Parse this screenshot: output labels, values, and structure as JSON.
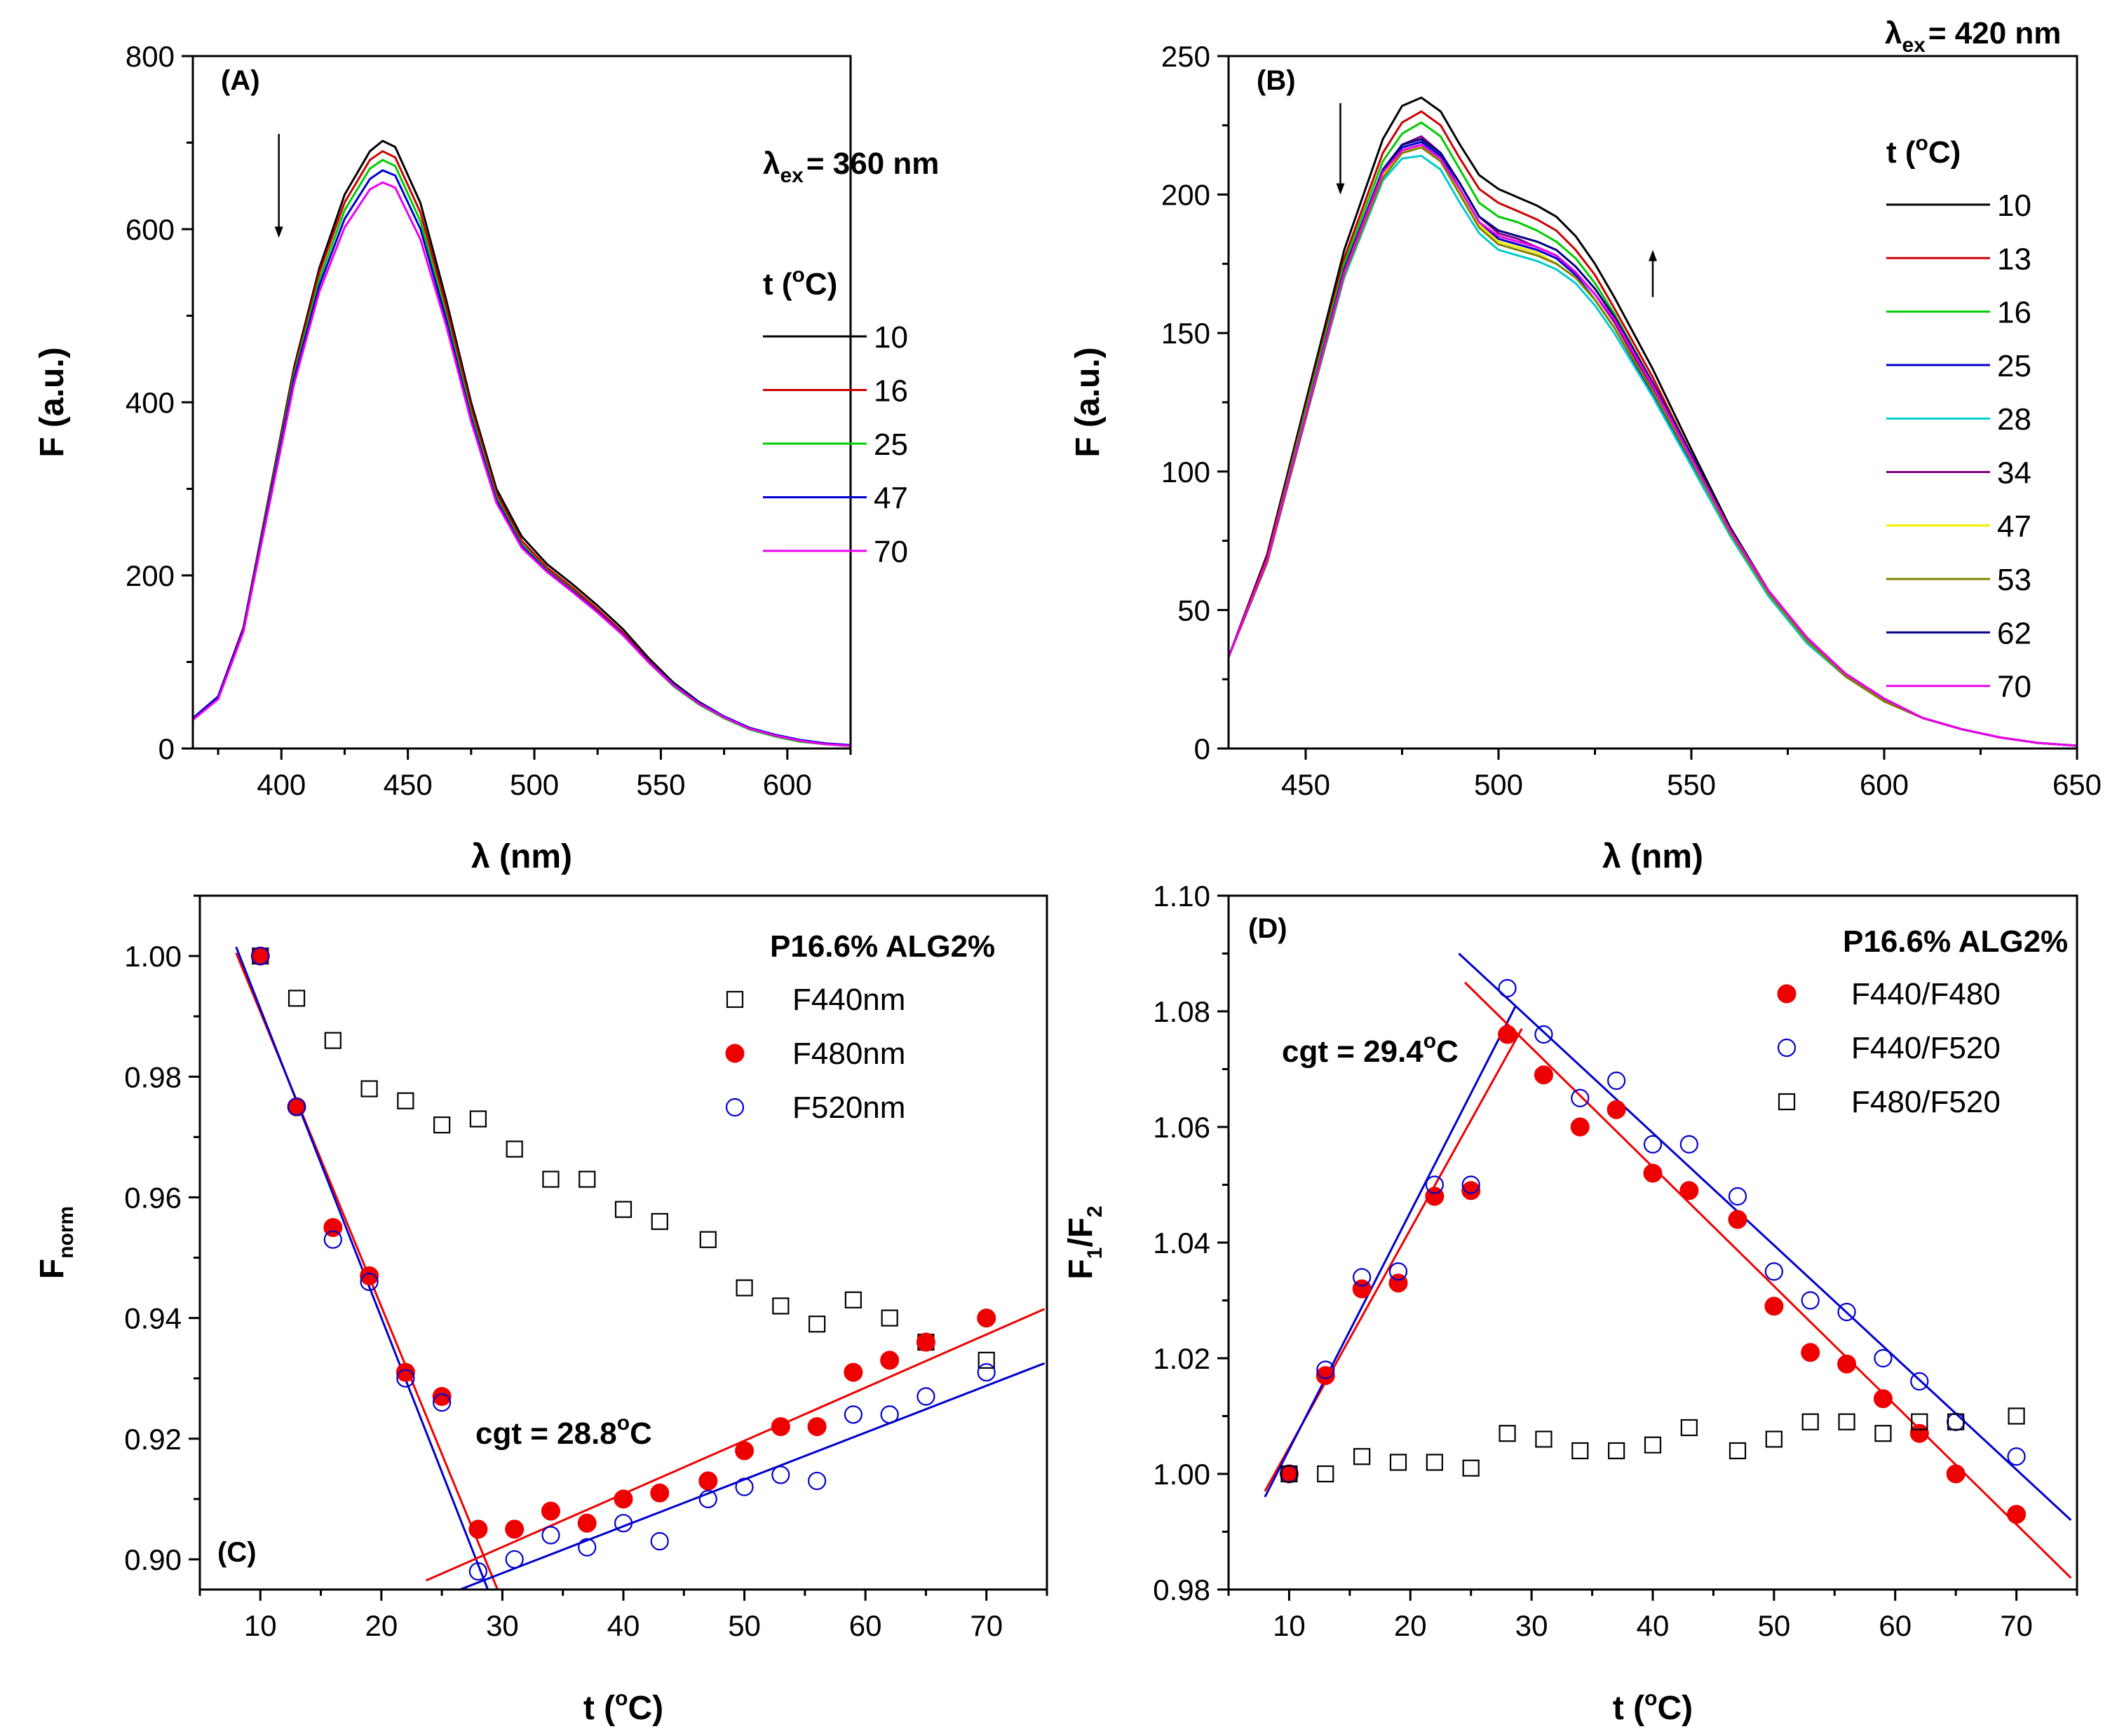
{
  "figure_panels": [
    "A",
    "B",
    "C",
    "D"
  ],
  "chart_data": [
    {
      "id": "A",
      "type": "line",
      "panel_label": "(A)",
      "xlabel": "λ (nm)",
      "ylabel": "F (a.u.)",
      "xlim": [
        365,
        625
      ],
      "ylim": [
        0,
        800
      ],
      "xticks": [
        400,
        450,
        500,
        550,
        600
      ],
      "yticks": [
        0,
        200,
        400,
        600,
        800
      ],
      "annotation": {
        "lambda": "λ",
        "sub": "ex",
        "rest": "= 360 nm"
      },
      "legend_title": {
        "t": "t (",
        "sup": "o",
        "c": "C)"
      },
      "x": [
        365,
        375,
        385,
        395,
        405,
        415,
        425,
        435,
        440,
        445,
        455,
        465,
        475,
        485,
        495,
        505,
        515,
        525,
        535,
        545,
        555,
        565,
        575,
        585,
        595,
        605,
        615,
        625
      ],
      "series": [
        {
          "name": "10",
          "color": "#000000",
          "values": [
            35,
            60,
            140,
            290,
            440,
            555,
            640,
            690,
            702,
            695,
            630,
            520,
            400,
            300,
            245,
            213,
            190,
            165,
            138,
            105,
            76,
            54,
            37,
            24,
            15,
            9,
            5,
            3
          ]
        },
        {
          "name": "16",
          "color": "#cc0000",
          "values": [
            35,
            60,
            140,
            288,
            436,
            550,
            631,
            680,
            690,
            683,
            619,
            512,
            394,
            295,
            240,
            209,
            186,
            161,
            134,
            102,
            74,
            52,
            36,
            23,
            14,
            8,
            5,
            3
          ]
        },
        {
          "name": "25",
          "color": "#00cc00",
          "values": [
            34,
            59,
            138,
            285,
            431,
            542,
            622,
            670,
            680,
            673,
            609,
            503,
            387,
            290,
            236,
            206,
            183,
            158,
            131,
            100,
            72,
            51,
            35,
            22,
            14,
            8,
            5,
            3
          ]
        },
        {
          "name": "47",
          "color": "#0000cc",
          "values": [
            35,
            60,
            138,
            283,
            427,
            535,
            612,
            658,
            668,
            662,
            600,
            497,
            382,
            287,
            234,
            205,
            182,
            158,
            132,
            101,
            74,
            53,
            37,
            24,
            16,
            10,
            6,
            4
          ]
        },
        {
          "name": "70",
          "color": "#ee00ee",
          "values": [
            33,
            57,
            135,
            278,
            421,
            528,
            602,
            646,
            654,
            648,
            588,
            490,
            378,
            284,
            232,
            204,
            181,
            157,
            131,
            100,
            73,
            52,
            36,
            23,
            15,
            9,
            5,
            3
          ]
        }
      ],
      "arrows": [
        {
          "x": 399,
          "y_from": 710,
          "y_to": 590
        }
      ]
    },
    {
      "id": "B",
      "type": "line",
      "panel_label": "(B)",
      "xlabel": "λ (nm)",
      "ylabel": "F (a.u.)",
      "xlim": [
        430,
        650
      ],
      "ylim": [
        0,
        250
      ],
      "xticks": [
        450,
        500,
        550,
        600,
        650
      ],
      "yticks": [
        0,
        50,
        100,
        150,
        200,
        250
      ],
      "annotation": {
        "lambda": "λ",
        "sub": "ex",
        "rest": "= 420 nm"
      },
      "legend_title": {
        "t": "t (",
        "sup": "o",
        "c": "C)"
      },
      "x": [
        430,
        440,
        450,
        460,
        470,
        475,
        480,
        485,
        490,
        495,
        500,
        505,
        510,
        515,
        520,
        525,
        530,
        540,
        550,
        560,
        570,
        580,
        590,
        600,
        610,
        620,
        630,
        640,
        650
      ],
      "series": [
        {
          "name": "10",
          "color": "#000000",
          "values": [
            33,
            70,
            125,
            180,
            220,
            232,
            235,
            230,
            218,
            207,
            202,
            199,
            196,
            192,
            185,
            175,
            163,
            137,
            108,
            80,
            57,
            40,
            27,
            18,
            11,
            7,
            4,
            2,
            1
          ]
        },
        {
          "name": "13",
          "color": "#cc0000",
          "values": [
            33,
            69,
            123,
            177,
            215,
            226,
            230,
            225,
            213,
            202,
            197,
            194,
            191,
            187,
            180,
            171,
            159,
            134,
            106,
            79,
            56,
            39,
            27,
            18,
            11,
            7,
            4,
            2,
            1
          ]
        },
        {
          "name": "16",
          "color": "#00cc00",
          "values": [
            33,
            68,
            122,
            175,
            212,
            222,
            226,
            221,
            209,
            197,
            192,
            190,
            187,
            183,
            177,
            168,
            157,
            132,
            105,
            78,
            56,
            39,
            26,
            17,
            11,
            7,
            4,
            2,
            1
          ]
        },
        {
          "name": "25",
          "color": "#0000cc",
          "values": [
            33,
            68,
            120,
            172,
            208,
            217,
            219,
            214,
            202,
            190,
            184,
            182,
            180,
            177,
            171,
            162,
            152,
            128,
            103,
            77,
            55,
            38,
            26,
            17,
            11,
            7,
            4,
            2,
            1
          ]
        },
        {
          "name": "28",
          "color": "#00cccc",
          "values": [
            33,
            67,
            119,
            170,
            205,
            213,
            214,
            209,
            197,
            186,
            180,
            178,
            176,
            173,
            168,
            160,
            150,
            127,
            102,
            77,
            55,
            38,
            26,
            17,
            11,
            7,
            4,
            2,
            1
          ]
        },
        {
          "name": "34",
          "color": "#800080",
          "values": [
            33,
            68,
            120,
            172,
            208,
            218,
            221,
            215,
            204,
            192,
            186,
            184,
            181,
            178,
            172,
            164,
            154,
            130,
            104,
            78,
            56,
            39,
            26,
            17,
            11,
            7,
            4,
            2,
            1
          ]
        },
        {
          "name": "47",
          "color": "#eeee00",
          "values": [
            33,
            67,
            119,
            171,
            207,
            215,
            218,
            212,
            201,
            189,
            183,
            181,
            179,
            175,
            170,
            162,
            152,
            129,
            104,
            78,
            56,
            39,
            26,
            17,
            11,
            7,
            4,
            2,
            1
          ]
        },
        {
          "name": "53",
          "color": "#808000",
          "values": [
            33,
            67,
            119,
            171,
            206,
            215,
            217,
            212,
            200,
            188,
            182,
            180,
            178,
            175,
            170,
            162,
            152,
            129,
            104,
            78,
            56,
            39,
            26,
            17,
            11,
            7,
            4,
            2,
            1
          ]
        },
        {
          "name": "62",
          "color": "#000080",
          "values": [
            33,
            68,
            120,
            173,
            209,
            218,
            220,
            215,
            204,
            192,
            187,
            185,
            183,
            180,
            174,
            166,
            156,
            132,
            106,
            79,
            57,
            40,
            27,
            18,
            11,
            7,
            4,
            2,
            1
          ]
        },
        {
          "name": "70",
          "color": "#ee00ee",
          "values": [
            33,
            68,
            120,
            172,
            208,
            216,
            218,
            213,
            202,
            190,
            185,
            183,
            181,
            178,
            172,
            164,
            155,
            131,
            105,
            79,
            57,
            40,
            27,
            18,
            11,
            7,
            4,
            2,
            1
          ]
        }
      ],
      "arrows": [
        {
          "x": 459,
          "y_from": 233,
          "y_to": 200
        },
        {
          "x": 540,
          "y_from": 163,
          "y_to": 180
        }
      ]
    },
    {
      "id": "C",
      "type": "scatter",
      "panel_label": "(C)",
      "xlabel": {
        "t": "t (",
        "sup": "o",
        "c": "C)"
      },
      "ylabel": {
        "main": "F",
        "sub": "norm"
      },
      "xlim": [
        5,
        75
      ],
      "ylim": [
        0.895,
        1.01
      ],
      "xticks": [
        10,
        20,
        30,
        40,
        50,
        60,
        70
      ],
      "yticks": [
        0.9,
        0.92,
        0.94,
        0.96,
        0.98,
        1.0
      ],
      "ytick_labels": [
        "0.90",
        "0.92",
        "0.94",
        "0.96",
        "0.98",
        "1.00"
      ],
      "legend_header": "P16.6% ALG2%",
      "note": {
        "pre": "cgt = 28.8",
        "sup": "o",
        "post": "C"
      },
      "x": [
        10,
        13,
        16,
        19,
        22,
        25,
        28,
        31,
        34,
        37,
        40,
        43,
        47,
        50,
        53,
        56,
        59,
        62,
        65,
        70
      ],
      "series": [
        {
          "name": "F440nm",
          "marker": "open-square",
          "color": "#000000",
          "values": [
            1.0,
            0.993,
            0.986,
            0.978,
            0.976,
            0.972,
            0.973,
            0.968,
            0.963,
            0.963,
            0.958,
            0.956,
            0.953,
            0.945,
            0.942,
            0.939,
            0.943,
            0.94,
            0.936,
            0.933
          ]
        },
        {
          "name": "F480nm",
          "marker": "filled-circle",
          "color": "#ee0000",
          "values": [
            1.0,
            0.975,
            0.955,
            0.947,
            0.931,
            0.927,
            0.905,
            0.905,
            0.908,
            0.906,
            0.91,
            0.911,
            0.913,
            0.918,
            0.922,
            0.922,
            0.931,
            0.933,
            0.936,
            0.94
          ]
        },
        {
          "name": "F520nm",
          "marker": "open-circle",
          "color": "#0000cc",
          "values": [
            1.0,
            0.975,
            0.953,
            0.946,
            0.93,
            0.926,
            0.898,
            0.9,
            0.904,
            0.902,
            0.906,
            0.903,
            0.91,
            0.912,
            0.914,
            0.913,
            0.924,
            0.924,
            0.927,
            0.931
          ]
        }
      ],
      "fit_lines": [
        {
          "color": "#ee0000",
          "x": [
            8,
            29.6
          ],
          "y": [
            1.0005,
            0.895
          ]
        },
        {
          "color": "#0000cc",
          "x": [
            8,
            28.8
          ],
          "y": [
            1.0015,
            0.895
          ]
        },
        {
          "color": "#ee0000",
          "x": [
            23.7,
            74.8
          ],
          "y": [
            0.8965,
            0.9415
          ]
        },
        {
          "color": "#0000cc",
          "x": [
            26.5,
            74.8
          ],
          "y": [
            0.895,
            0.9325
          ]
        }
      ]
    },
    {
      "id": "D",
      "type": "scatter",
      "panel_label": "(D)",
      "xlabel": {
        "t": "t (",
        "sup": "o",
        "c": "C)"
      },
      "ylabel": {
        "main": "F",
        "sub1": "1",
        "mid": "/F",
        "sub2": "2"
      },
      "xlim": [
        5,
        75
      ],
      "ylim": [
        0.98,
        1.1
      ],
      "xticks": [
        10,
        20,
        30,
        40,
        50,
        60,
        70
      ],
      "yticks": [
        0.98,
        1.0,
        1.02,
        1.04,
        1.06,
        1.08,
        1.1
      ],
      "ytick_labels": [
        "0.98",
        "1.00",
        "1.02",
        "1.04",
        "1.06",
        "1.08",
        "1.10"
      ],
      "legend_header": "P16.6% ALG2%",
      "note": {
        "pre": "cgt = 29.4",
        "sup": "o",
        "post": "C"
      },
      "x": [
        10,
        13,
        16,
        19,
        22,
        25,
        28,
        31,
        34,
        37,
        40,
        43,
        47,
        50,
        53,
        56,
        59,
        62,
        65,
        70
      ],
      "series": [
        {
          "name": "F440/F480",
          "marker": "filled-circle",
          "color": "#ee0000",
          "values": [
            1.0,
            1.017,
            1.032,
            1.033,
            1.048,
            1.049,
            1.076,
            1.069,
            1.06,
            1.063,
            1.052,
            1.049,
            1.044,
            1.029,
            1.021,
            1.019,
            1.013,
            1.007,
            1.0,
            0.993
          ]
        },
        {
          "name": "F440/F520",
          "marker": "open-circle",
          "color": "#0000cc",
          "values": [
            1.0,
            1.018,
            1.034,
            1.035,
            1.05,
            1.05,
            1.084,
            1.076,
            1.065,
            1.068,
            1.057,
            1.057,
            1.048,
            1.035,
            1.03,
            1.028,
            1.02,
            1.016,
            1.009,
            1.003
          ]
        },
        {
          "name": "F480/F520",
          "marker": "open-square",
          "color": "#000000",
          "values": [
            1.0,
            1.0,
            1.003,
            1.002,
            1.002,
            1.001,
            1.007,
            1.006,
            1.004,
            1.004,
            1.005,
            1.008,
            1.004,
            1.006,
            1.009,
            1.009,
            1.007,
            1.009,
            1.009,
            1.01
          ]
        }
      ],
      "fit_lines": [
        {
          "color": "#ee0000",
          "x": [
            8,
            29.2
          ],
          "y": [
            0.997,
            1.077
          ]
        },
        {
          "color": "#0000cc",
          "x": [
            8,
            28.7
          ],
          "y": [
            0.996,
            1.081
          ]
        },
        {
          "color": "#ee0000",
          "x": [
            24.5,
            74.5
          ],
          "y": [
            1.085,
            0.982
          ]
        },
        {
          "color": "#0000cc",
          "x": [
            24.0,
            74.5
          ],
          "y": [
            1.09,
            0.992
          ]
        }
      ]
    }
  ]
}
